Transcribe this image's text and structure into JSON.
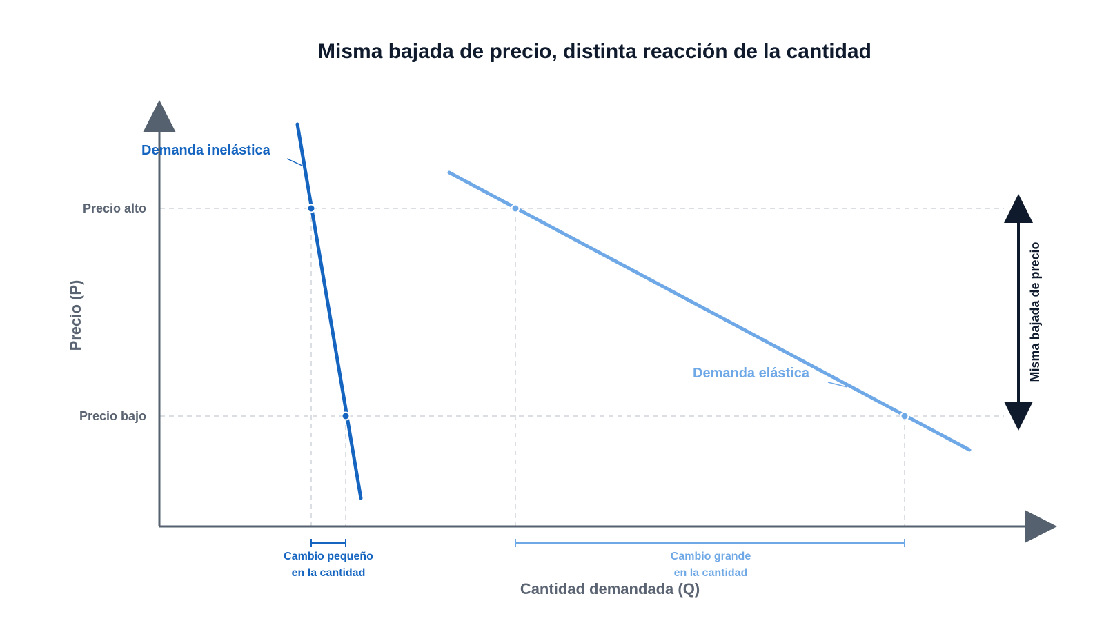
{
  "title": "Misma bajada de precio, distinta reacción de la cantidad",
  "axes": {
    "y_label": "Precio (P)",
    "x_label": "Cantidad demandada (Q)",
    "price_levels": [
      "Precio alto",
      "Precio bajo"
    ]
  },
  "curves": [
    {
      "name": "inelastic",
      "label": "Demanda inelástica",
      "color": "#1565c0"
    },
    {
      "name": "elastic",
      "label": "Demanda elástica",
      "color": "#6fa8e6"
    }
  ],
  "brackets": [
    {
      "name": "small-change",
      "lines": [
        "Cambio pequeño",
        "en la cantidad"
      ],
      "color": "#1565c0"
    },
    {
      "name": "large-change",
      "lines": [
        "Cambio grande",
        "en la cantidad"
      ],
      "color": "#6fa8e6"
    }
  ],
  "price_drop_label": "Misma bajada de precio",
  "colors": {
    "axis": "#566170",
    "guide": "#cfd3d8",
    "arrow": "#0f1b2d"
  }
}
